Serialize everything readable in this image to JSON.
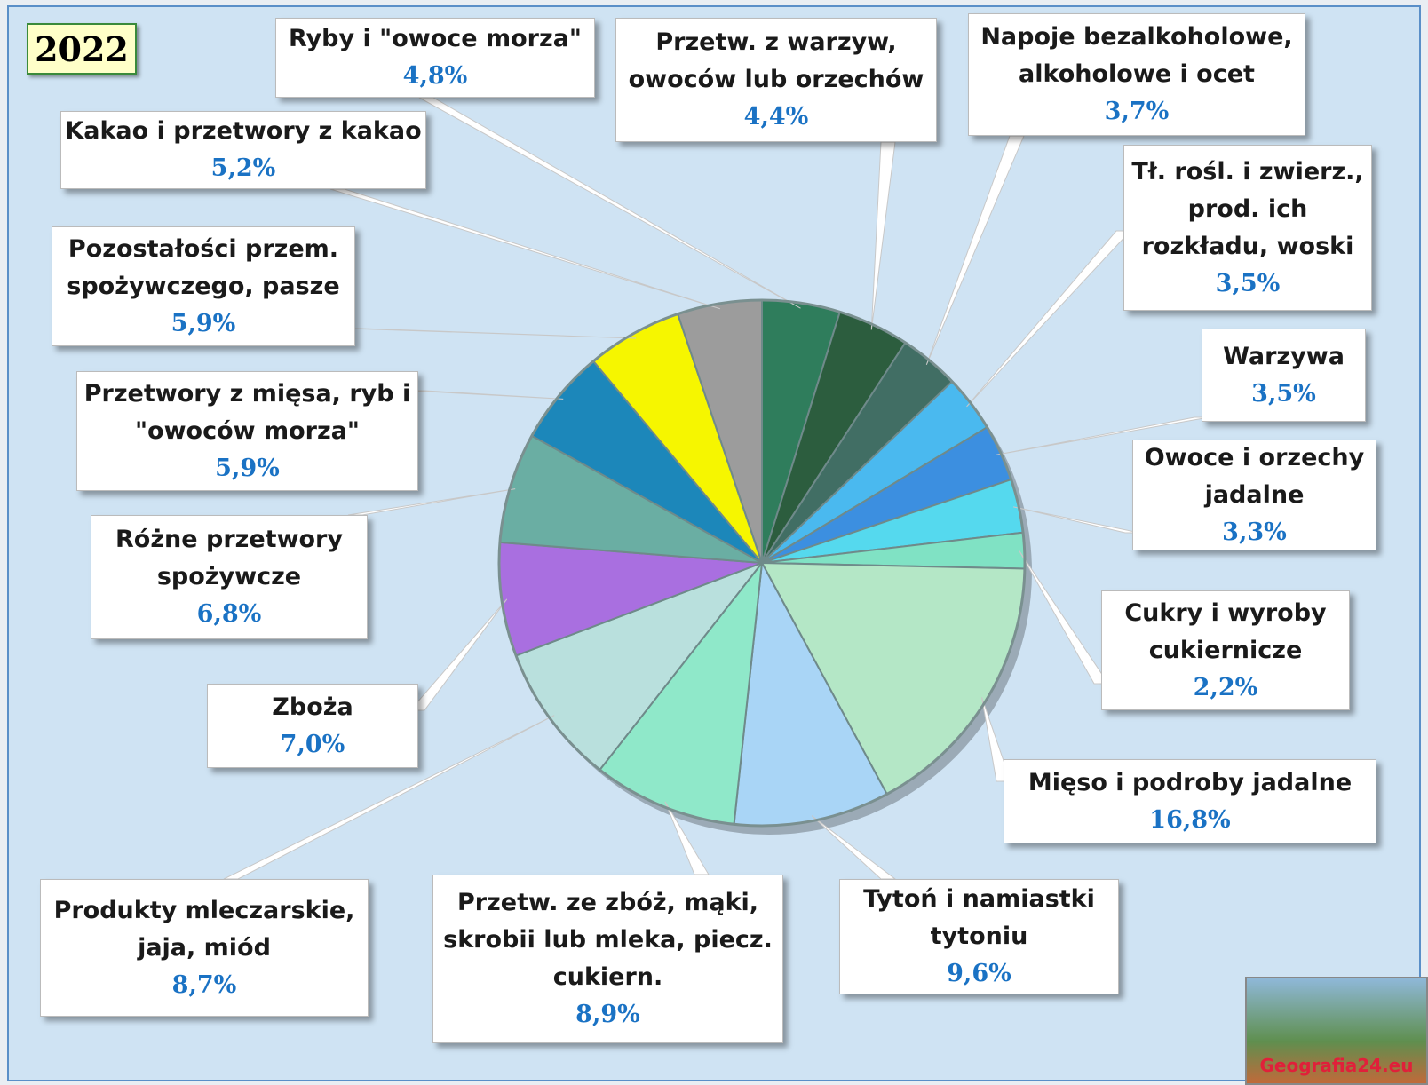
{
  "chart_data": {
    "type": "pie",
    "title": "2022",
    "categories": [
      "Ryby i \"owoce morza\"",
      "Przetw. z warzyw,\nowoców lub orzechów",
      "Napoje bezalkoholowe,\nalkoholowe i ocet",
      "Tł. rośl. i zwierz.,\nprod. ich\nrozkładu, woski",
      "Warzywa",
      "Owoce i orzechy\njadalne",
      "Cukry i wyroby\ncukiernicze",
      "Mięso i podroby jadalne",
      "Tytoń i namiastki\ntytoniu",
      "Przetw. ze zbóż, mąki,\nskrobii lub mleka, piecz.\ncukiern.",
      "Produkty mleczarskie,\njaja, miód",
      "Zboża",
      "Różne przetwory\nspożywcze",
      "Przetwory z mięsa, ryb i\n\"owoców morza\"",
      "Pozostałości przem.\nspożywczego, pasze",
      "Kakao i przetwory z kakao"
    ],
    "values": [
      4.8,
      4.4,
      3.7,
      3.5,
      3.5,
      3.3,
      2.2,
      16.8,
      9.6,
      8.9,
      8.7,
      7.0,
      6.8,
      5.9,
      5.9,
      5.2
    ],
    "value_labels": [
      "4,8%",
      "4,4%",
      "3,7%",
      "3,5%",
      "3,5%",
      "3,3%",
      "2,2%",
      "16,8%",
      "9,6%",
      "8,9%",
      "8,7%",
      "7,0%",
      "6,8%",
      "5,9%",
      "5,9%",
      "5,2%"
    ],
    "colors": [
      "#2f7d5c",
      "#2c5d3e",
      "#416e64",
      "#4ab9ef",
      "#3c8fe0",
      "#55d9ee",
      "#80e2c4",
      "#b4e7c6",
      "#a9d5f6",
      "#8fe8c9",
      "#b9e0dd",
      "#a96fe0",
      "#6aaea3",
      "#1c87ba",
      "#f6f600",
      "#9c9c9c"
    ],
    "logo": "Geografia24.eu"
  }
}
